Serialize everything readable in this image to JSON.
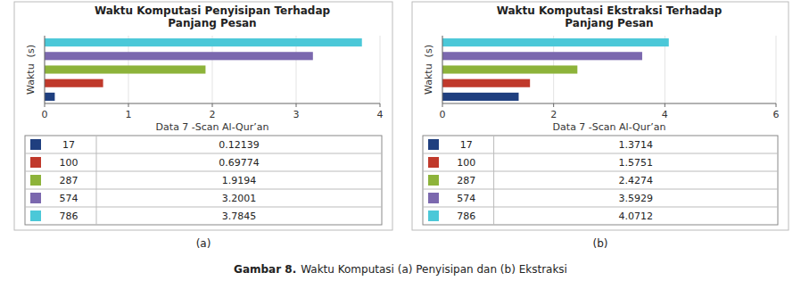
{
  "chart_data": [
    {
      "type": "bar",
      "orientation": "horizontal",
      "title": "Waktu Komputasi Penyisipan Terhadap\nPanjang Pesan",
      "x_label": "Data 7 -Scan Al-Qur’an",
      "y_label": "Waktu  (s)",
      "categories": [
        "17",
        "100",
        "287",
        "574",
        "786"
      ],
      "values": [
        0.12139,
        0.69774,
        1.9194,
        3.2001,
        3.7845
      ],
      "colors": [
        "#1f3f7f",
        "#c0392b",
        "#8db33a",
        "#7b68ae",
        "#4bc8d8"
      ],
      "xlim": [
        0,
        4
      ],
      "xticks": [
        0,
        1,
        2,
        3,
        4
      ],
      "grid": true,
      "tick_labels": "x",
      "caption": "(a)"
    },
    {
      "type": "bar",
      "orientation": "horizontal",
      "title": "Waktu Komputasi Ekstraksi Terhadap\nPanjang Pesan",
      "x_label": "Data 7 -Scan Al-Qur’an",
      "y_label": "Waktu  (s)",
      "categories": [
        "17",
        "100",
        "287",
        "574",
        "786"
      ],
      "values": [
        1.3714,
        1.5751,
        2.4274,
        3.5929,
        4.0712
      ],
      "colors": [
        "#1f3f7f",
        "#c0392b",
        "#8db33a",
        "#7b68ae",
        "#4bc8d8"
      ],
      "xlim": [
        0,
        6
      ],
      "xticks": [
        0,
        2,
        4,
        6
      ],
      "grid": true,
      "tick_labels": "x",
      "caption": "(b)"
    }
  ],
  "caption": [
    "Gambar 8.",
    "Waktu Komputasi (a) Penyisipan dan (b) Ekstraksi"
  ]
}
